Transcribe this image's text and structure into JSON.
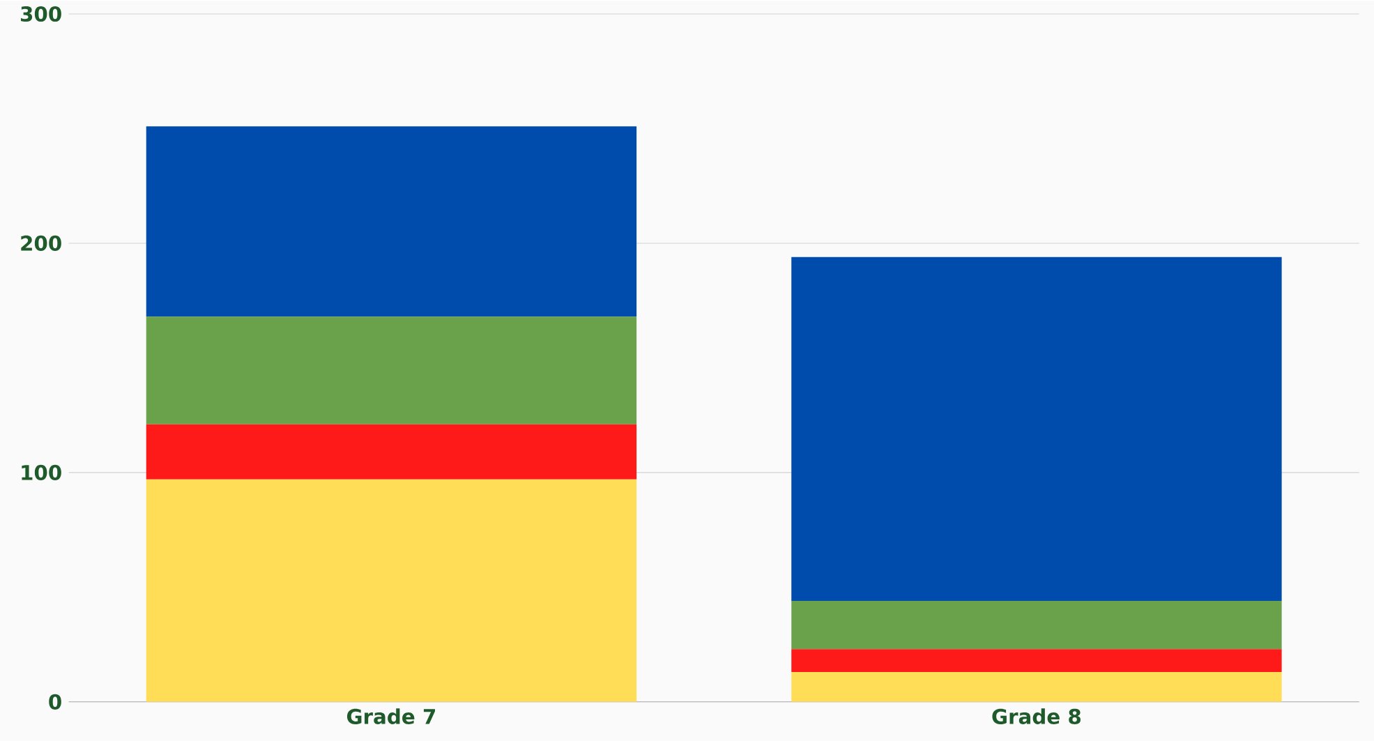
{
  "chart_data": {
    "type": "bar",
    "stacked": true,
    "categories": [
      "Grade 7",
      "Grade 8"
    ],
    "series": [
      {
        "color": "#ffdd57",
        "values": [
          97,
          13
        ]
      },
      {
        "color": "#ff1a1a",
        "values": [
          24,
          10
        ]
      },
      {
        "color": "#6aa24c",
        "values": [
          47,
          21
        ]
      },
      {
        "color": "#004cad",
        "values": [
          83,
          150
        ]
      }
    ],
    "ylim": [
      0,
      300
    ],
    "yticks": [
      0,
      100,
      200,
      300
    ],
    "grid": "y"
  }
}
